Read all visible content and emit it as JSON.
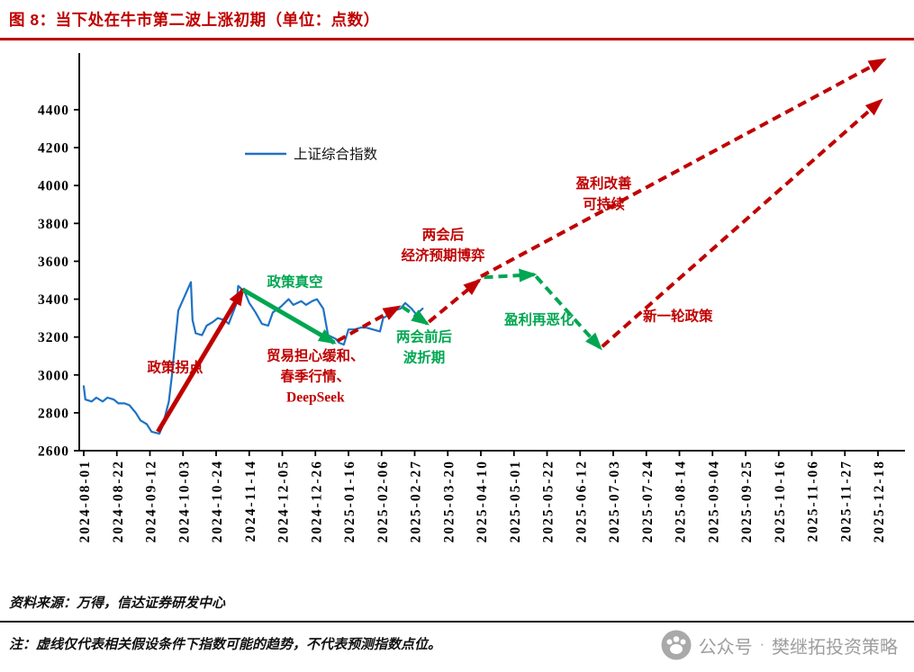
{
  "title": "图 8：当下处在牛市第二波上涨初期（单位：点数）",
  "footer": {
    "source": "资料来源：万得，信达证券研发中心",
    "note": "注：虚线仅代表相关假设条件下指数可能的趋势，不代表预测指数点位。"
  },
  "watermark": {
    "label_prefix": "公众号",
    "separator": "·",
    "label_name": "樊继拓投资策略"
  },
  "colors": {
    "title": "#c00000",
    "red": "#c00000",
    "green": "#00a651",
    "line": "#1f72c4",
    "axis": "#000000",
    "watermark": "#9e9e9e"
  },
  "chart_data": {
    "type": "line",
    "title": "",
    "xlabel": "",
    "ylabel": "",
    "grid": false,
    "legend_position": "upper-left-inside",
    "legend": [
      {
        "label": "上证综合指数",
        "color": "#1f72c4"
      }
    ],
    "y_axis": {
      "min": 2600,
      "max": 4400,
      "step": 200,
      "ticks": [
        2600,
        2800,
        3000,
        3200,
        3400,
        3600,
        3800,
        4000,
        4200,
        4400
      ]
    },
    "x_axis": {
      "start": "2024-08-01",
      "end": "2025-12-18",
      "tick_labels": [
        "2024-08-01",
        "2024-08-22",
        "2024-09-12",
        "2024-10-03",
        "2024-10-24",
        "2024-11-14",
        "2024-12-05",
        "2024-12-26",
        "2025-01-16",
        "2025-02-06",
        "2025-02-27",
        "2025-03-20",
        "2025-04-10",
        "2025-05-01",
        "2025-05-22",
        "2025-06-12",
        "2025-07-03",
        "2025-07-24",
        "2025-08-14",
        "2025-09-04",
        "2025-09-25",
        "2025-10-16",
        "2025-11-06",
        "2025-11-27",
        "2025-12-18"
      ]
    },
    "series": [
      {
        "name": "上证综合指数",
        "color": "#1f72c4",
        "points": [
          [
            "2024-08-01",
            2940
          ],
          [
            "2024-08-02",
            2870
          ],
          [
            "2024-08-06",
            2860
          ],
          [
            "2024-08-09",
            2880
          ],
          [
            "2024-08-13",
            2860
          ],
          [
            "2024-08-16",
            2880
          ],
          [
            "2024-08-20",
            2870
          ],
          [
            "2024-08-23",
            2850
          ],
          [
            "2024-08-27",
            2850
          ],
          [
            "2024-08-30",
            2840
          ],
          [
            "2024-09-03",
            2800
          ],
          [
            "2024-09-06",
            2760
          ],
          [
            "2024-09-10",
            2740
          ],
          [
            "2024-09-13",
            2700
          ],
          [
            "2024-09-18",
            2690
          ],
          [
            "2024-09-20",
            2730
          ],
          [
            "2024-09-24",
            2860
          ],
          [
            "2024-09-26",
            3000
          ],
          [
            "2024-09-27",
            3090
          ],
          [
            "2024-09-30",
            3340
          ],
          [
            "2024-10-08",
            3490
          ],
          [
            "2024-10-09",
            3290
          ],
          [
            "2024-10-11",
            3220
          ],
          [
            "2024-10-15",
            3210
          ],
          [
            "2024-10-18",
            3260
          ],
          [
            "2024-10-22",
            3280
          ],
          [
            "2024-10-25",
            3300
          ],
          [
            "2024-10-29",
            3290
          ],
          [
            "2024-11-01",
            3270
          ],
          [
            "2024-11-06",
            3380
          ],
          [
            "2024-11-07",
            3470
          ],
          [
            "2024-11-11",
            3440
          ],
          [
            "2024-11-14",
            3380
          ],
          [
            "2024-11-18",
            3330
          ],
          [
            "2024-11-22",
            3270
          ],
          [
            "2024-11-26",
            3260
          ],
          [
            "2024-11-29",
            3330
          ],
          [
            "2024-12-04",
            3360
          ],
          [
            "2024-12-09",
            3400
          ],
          [
            "2024-12-12",
            3370
          ],
          [
            "2024-12-17",
            3390
          ],
          [
            "2024-12-20",
            3370
          ],
          [
            "2024-12-24",
            3390
          ],
          [
            "2024-12-27",
            3400
          ],
          [
            "2024-12-31",
            3350
          ],
          [
            "2025-01-03",
            3210
          ],
          [
            "2025-01-08",
            3190
          ],
          [
            "2025-01-10",
            3170
          ],
          [
            "2025-01-13",
            3160
          ],
          [
            "2025-01-16",
            3240
          ],
          [
            "2025-01-20",
            3240
          ],
          [
            "2025-01-24",
            3250
          ],
          [
            "2025-01-27",
            3250
          ],
          [
            "2025-02-05",
            3230
          ],
          [
            "2025-02-07",
            3300
          ],
          [
            "2025-02-11",
            3320
          ],
          [
            "2025-02-14",
            3340
          ],
          [
            "2025-02-18",
            3350
          ],
          [
            "2025-02-21",
            3380
          ],
          [
            "2025-02-25",
            3350
          ],
          [
            "2025-02-28",
            3320
          ],
          [
            "2025-03-04",
            3350
          ]
        ]
      }
    ],
    "arrows": [
      {
        "name": "policy-pivot-arrow",
        "style": "solid",
        "color": "red",
        "from": [
          "2024-09-17",
          2700
        ],
        "to": [
          "2024-11-10",
          3450
        ]
      },
      {
        "name": "policy-vacuum-arrow",
        "style": "solid",
        "color": "green",
        "from": [
          "2024-11-10",
          3450
        ],
        "to": [
          "2025-01-07",
          3170
        ]
      },
      {
        "name": "pre-two-sessions-rise-arrow",
        "style": "dashed",
        "color": "red",
        "from": [
          "2025-01-09",
          3180
        ],
        "to": [
          "2025-02-17",
          3360
        ]
      },
      {
        "name": "two-sessions-dip-arrow",
        "style": "dashed",
        "color": "green",
        "from": [
          "2025-02-19",
          3360
        ],
        "to": [
          "2025-03-07",
          3270
        ]
      },
      {
        "name": "post-two-sessions-rally-arrow",
        "style": "dashed",
        "color": "red",
        "from": [
          "2025-03-08",
          3280
        ],
        "to": [
          "2025-04-09",
          3500
        ]
      },
      {
        "name": "sideways-game-arrow",
        "style": "dashed",
        "color": "green",
        "from": [
          "2025-04-12",
          3515
        ],
        "to": [
          "2025-05-14",
          3530
        ]
      },
      {
        "name": "profit-deterioration-arrow",
        "style": "dashed",
        "color": "green",
        "from": [
          "2025-05-15",
          3520
        ],
        "to": [
          "2025-06-25",
          3140
        ]
      },
      {
        "name": "new-policy-round-arrow",
        "style": "dashed",
        "color": "red",
        "from": [
          "2025-06-26",
          3150
        ],
        "to": [
          "2025-12-20",
          4450
        ]
      },
      {
        "name": "profit-improvement-arrow",
        "style": "dashed",
        "color": "red",
        "from": [
          "2025-04-10",
          3520
        ],
        "to": [
          "2025-12-22",
          4665
        ]
      }
    ],
    "annotations": [
      {
        "name": "ann-policy-pivot",
        "color": "red",
        "anchor": [
          "2024-09-28",
          3040
        ],
        "lines": [
          "政策拐点"
        ]
      },
      {
        "name": "ann-policy-vacuum",
        "color": "green",
        "anchor": [
          "2024-12-13",
          3490
        ],
        "lines": [
          "政策真空"
        ]
      },
      {
        "name": "ann-trade-spring-deepseek",
        "color": "red",
        "anchor": [
          "2024-12-26",
          3100
        ],
        "lines": [
          "贸易担心缓和、",
          "春季行情、",
          "DeepSeek"
        ]
      },
      {
        "name": "ann-two-sessions-period",
        "color": "green",
        "anchor": [
          "2025-03-05",
          3200
        ],
        "lines": [
          "两会前后",
          "波折期"
        ]
      },
      {
        "name": "ann-post-two-sessions-game",
        "color": "red",
        "anchor": [
          "2025-03-17",
          3740
        ],
        "lines": [
          "两会后",
          "经济预期博弈"
        ]
      },
      {
        "name": "ann-profit-worse",
        "color": "green",
        "anchor": [
          "2025-05-17",
          3290
        ],
        "lines": [
          "盈利再恶化"
        ]
      },
      {
        "name": "ann-profit-improve",
        "color": "red",
        "anchor": [
          "2025-06-27",
          4010
        ],
        "lines": [
          "盈利改善",
          "可持续"
        ]
      },
      {
        "name": "ann-new-policy",
        "color": "red",
        "anchor": [
          "2025-08-13",
          3310
        ],
        "lines": [
          "新一轮政策"
        ]
      }
    ]
  }
}
